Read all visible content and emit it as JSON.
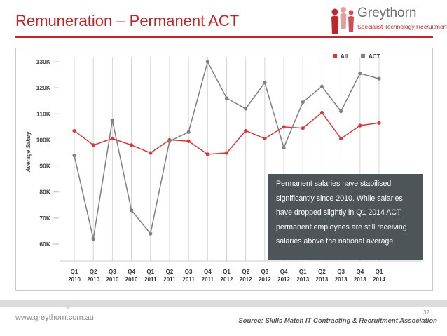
{
  "slide": {
    "title": "Remuneration – Permanent ACT",
    "logo_name": "Greythorn",
    "logo_tagline": "Specialist Technology Recruitment",
    "website": "www.greythorn.com.au",
    "page_number": "32",
    "source": "Source: Skills Match IT Contracting & Recruitment Association",
    "annotation": "Permanent salaries have stabilised significantly since 2010.  While salaries have dropped slightly in Q1 2014 ACT permanent employees are still receiving salaries above the national average.",
    "colors": {
      "title": "#c0242c",
      "all": "#d9383a",
      "act": "#7f7f7f",
      "annotation_bg": "#4d5559"
    }
  },
  "chart_data": {
    "type": "line",
    "ylabel": "Average Salary",
    "ylim": [
      55,
      132
    ],
    "yticks": [
      {
        "value": 60,
        "label": "60K"
      },
      {
        "value": 70,
        "label": "70K"
      },
      {
        "value": 80,
        "label": "80K"
      },
      {
        "value": 90,
        "label": "90K"
      },
      {
        "value": 100,
        "label": "100K"
      },
      {
        "value": 110,
        "label": "110K"
      },
      {
        "value": 120,
        "label": "120K"
      },
      {
        "value": 130,
        "label": "130K"
      }
    ],
    "categories": [
      [
        "Q1",
        "2010"
      ],
      [
        "Q2",
        "2010"
      ],
      [
        "Q3",
        "2010"
      ],
      [
        "Q4",
        "2010"
      ],
      [
        "Q1",
        "2011"
      ],
      [
        "Q2",
        "2011"
      ],
      [
        "Q3",
        "2011"
      ],
      [
        "Q4",
        "2011"
      ],
      [
        "Q1",
        "2012"
      ],
      [
        "Q2",
        "2012"
      ],
      [
        "Q3",
        "2012"
      ],
      [
        "Q4",
        "2012"
      ],
      [
        "Q1",
        "2013"
      ],
      [
        "Q2",
        "2013"
      ],
      [
        "Q3",
        "2013"
      ],
      [
        "Q4",
        "2013"
      ],
      [
        "Q1",
        "2014"
      ]
    ],
    "grid": "vertical",
    "legend_position": "top-right",
    "series": [
      {
        "name": "All",
        "color": "#d9383a",
        "values": [
          103.5,
          98,
          100.5,
          98,
          95,
          100,
          99.5,
          94.5,
          95,
          103.5,
          100.5,
          105,
          104.5,
          110.5,
          100.5,
          105.5,
          106.5
        ]
      },
      {
        "name": "ACT",
        "color": "#7f7f7f",
        "values": [
          94,
          62,
          107.5,
          73,
          64,
          99.5,
          103,
          130,
          116,
          112,
          122,
          97,
          114.5,
          120.5,
          111,
          125.5,
          123.5
        ]
      }
    ]
  }
}
